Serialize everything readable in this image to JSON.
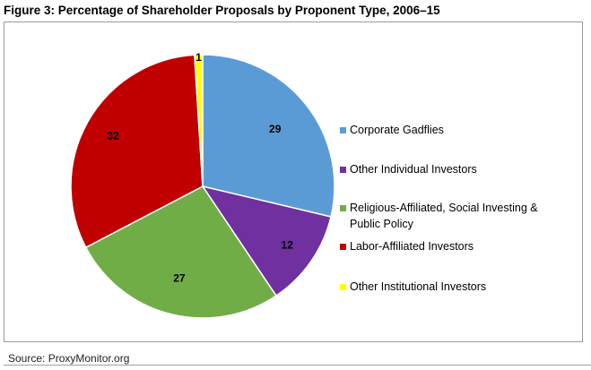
{
  "figure": {
    "title": "Figure 3: Percentage of Shareholder Proposals by Proponent Type, 2006–15",
    "source": "Source: ProxyMonitor.org"
  },
  "chart_data": {
    "type": "pie",
    "title": "Figure 3: Percentage of Shareholder Proposals by Proponent Type, 2006–15",
    "legend_position": "right",
    "start": "12 o'clock, clockwise",
    "slices": [
      {
        "label": "Corporate Gadflies",
        "value": 29,
        "color": "#5B9BD5"
      },
      {
        "label": "Other Individual Investors",
        "value": 12,
        "color": "#7030A0"
      },
      {
        "label": "Religious-Affiliated, Social Investing & Public Policy",
        "value": 27,
        "color": "#70AD47"
      },
      {
        "label": "Labor-Affiliated Investors",
        "value": 32,
        "color": "#C00000"
      },
      {
        "label": "Other Institutional Investors",
        "value": 1,
        "color": "#FFFF00"
      }
    ]
  }
}
